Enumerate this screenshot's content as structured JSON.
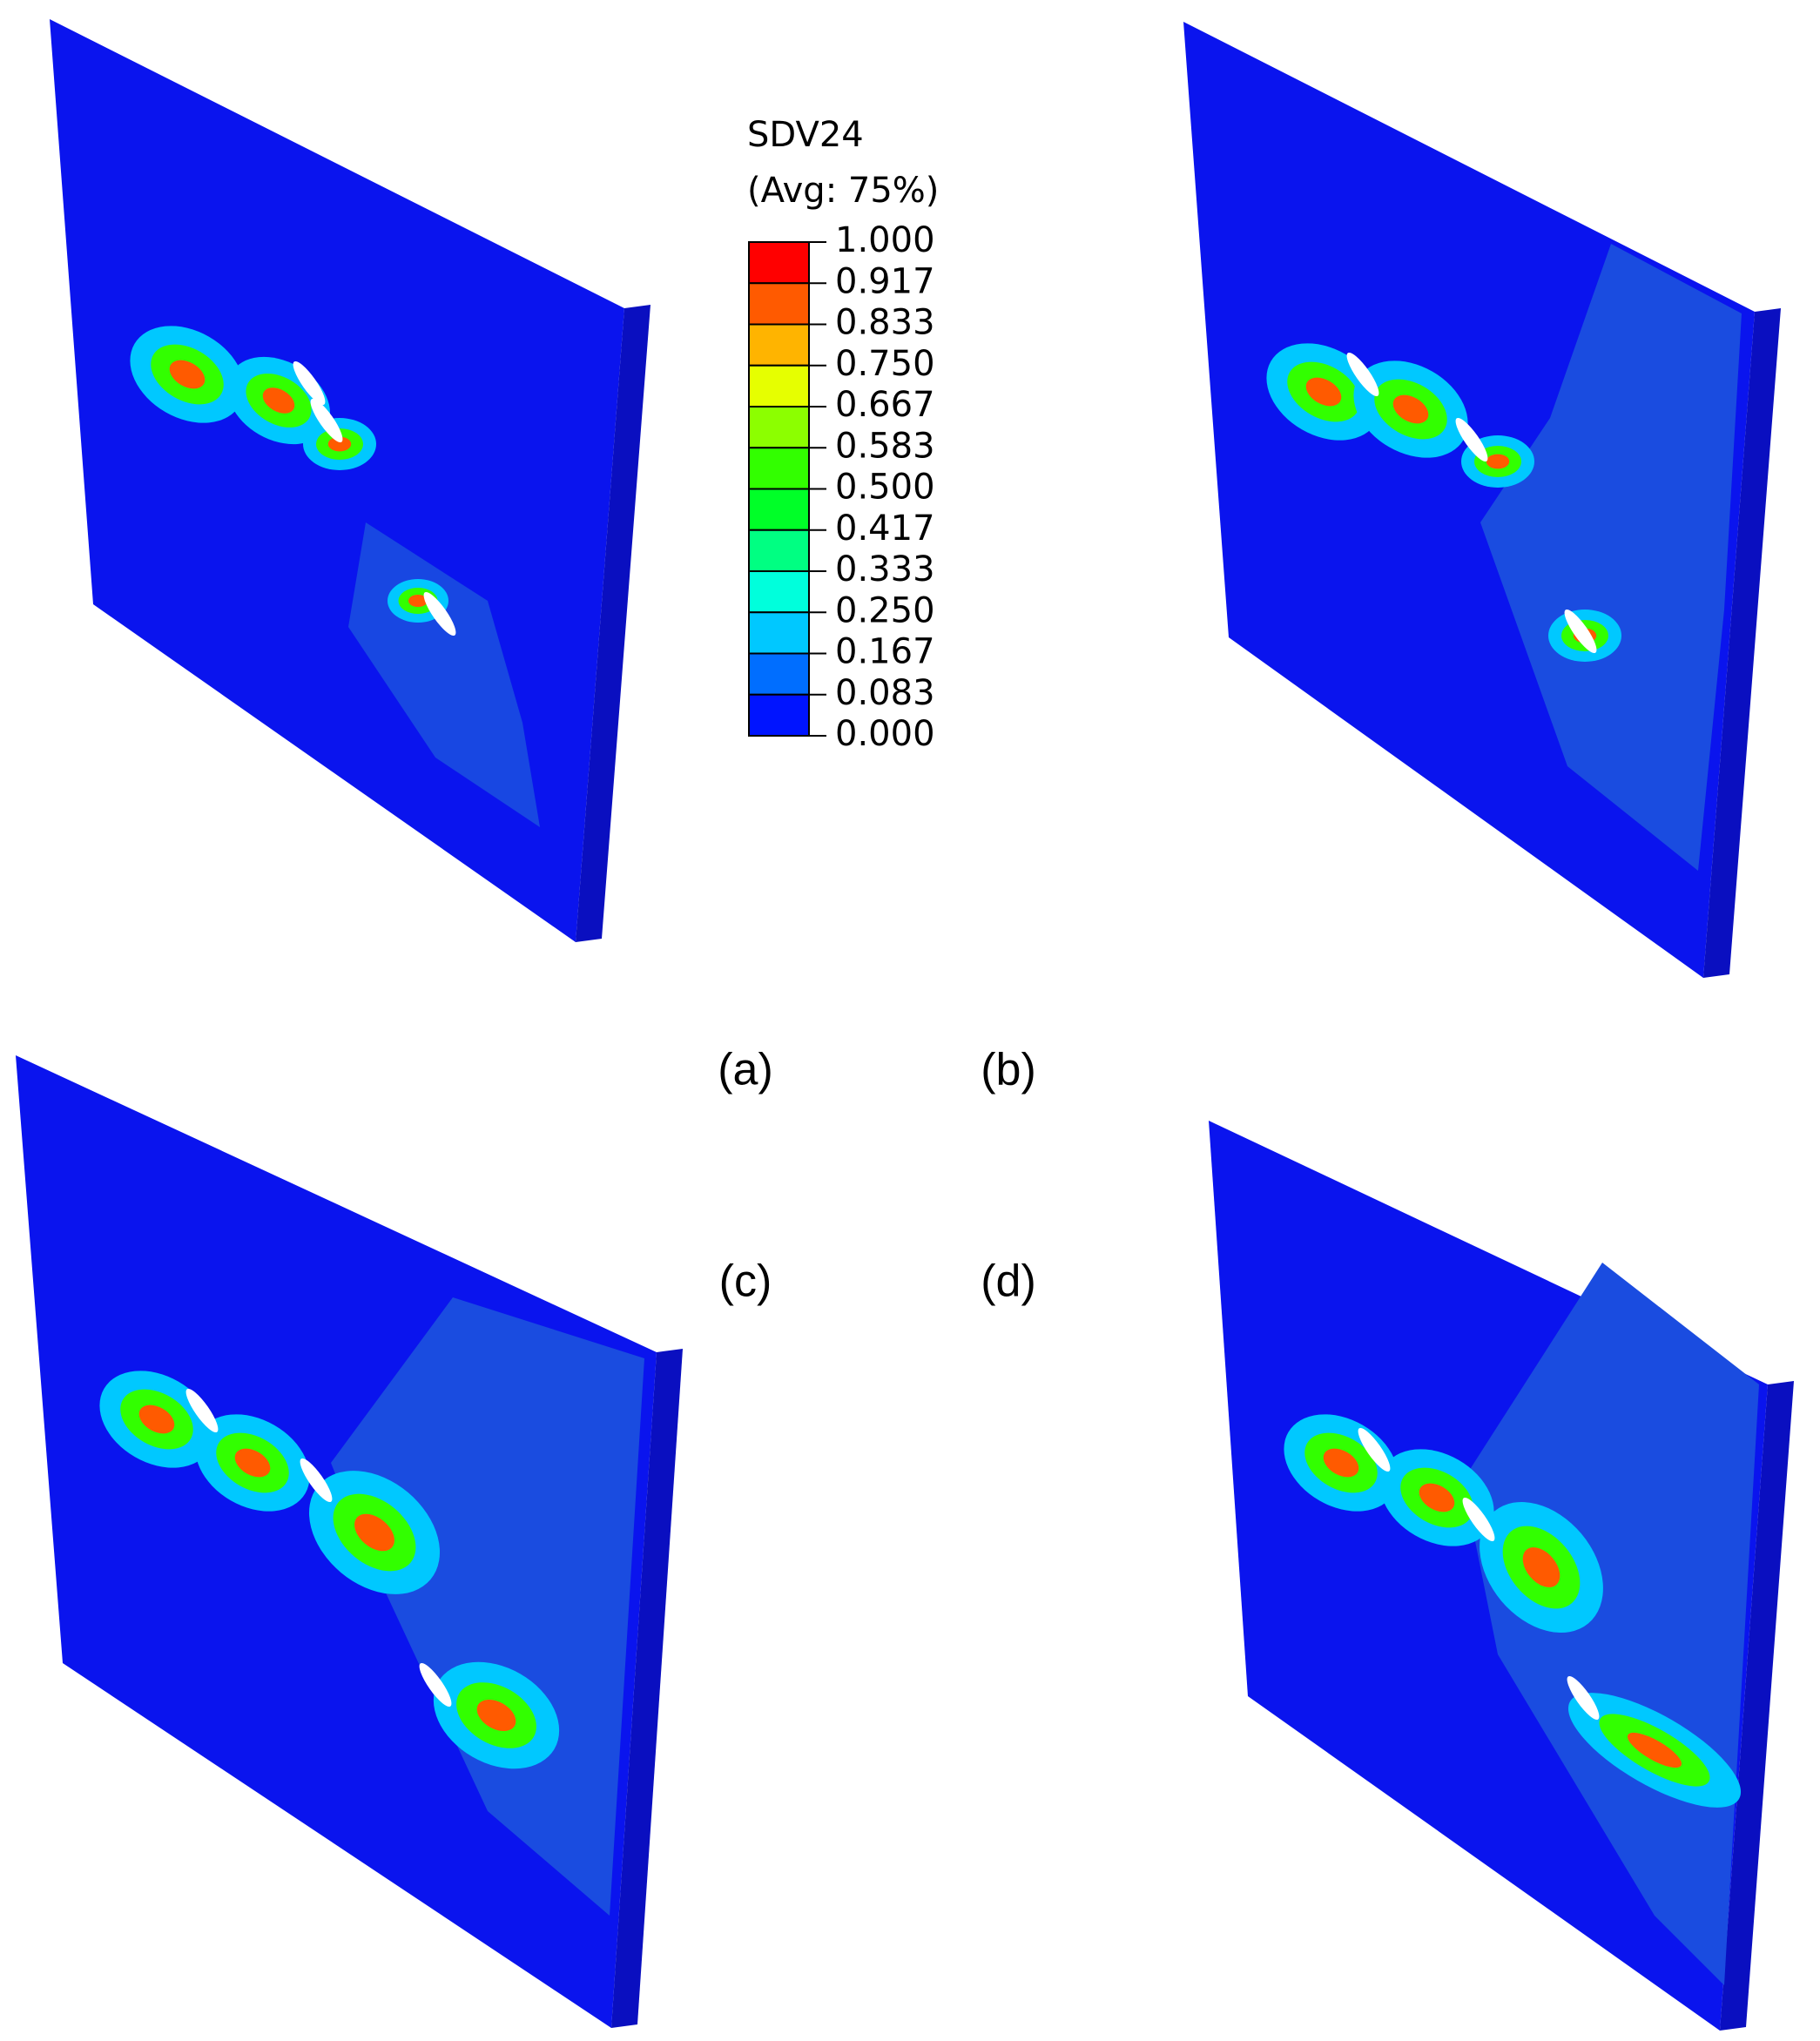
{
  "legend": {
    "title": "SDV24",
    "subtitle": "(Avg: 75%)",
    "labels": [
      "1.000",
      "0.917",
      "0.833",
      "0.750",
      "0.667",
      "0.583",
      "0.500",
      "0.417",
      "0.333",
      "0.250",
      "0.167",
      "0.083",
      "0.000"
    ],
    "colors": [
      "#ff0000",
      "#ff5a00",
      "#ffb400",
      "#e6ff00",
      "#8cff00",
      "#32ff00",
      "#00ff28",
      "#00ff82",
      "#00ffdc",
      "#00c8ff",
      "#006eff",
      "#0014ff"
    ]
  },
  "panels": [
    "(a)",
    "(b)",
    "(c)",
    "(d)"
  ]
}
